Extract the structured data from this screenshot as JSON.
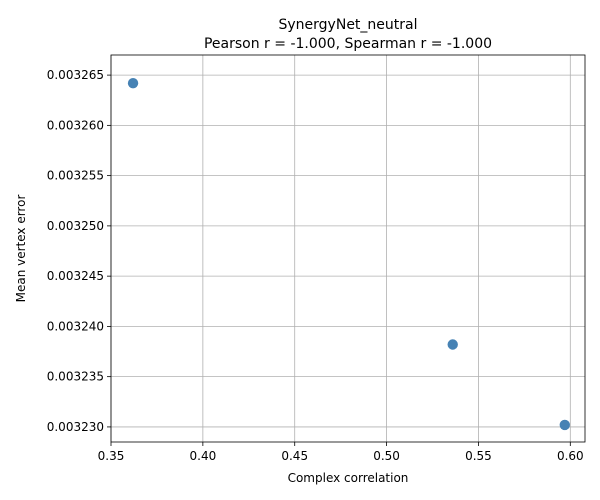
{
  "chart_data": {
    "type": "scatter",
    "title_line1": "SynergyNet_neutral",
    "title_line2": "Pearson r = -1.000, Spearman r = -1.000",
    "xlabel": "Complex correlation",
    "ylabel": "Mean vertex error",
    "xlim": [
      0.35,
      0.608
    ],
    "ylim": [
      0.0032285,
      0.003267
    ],
    "xticks": [
      0.35,
      0.4,
      0.45,
      0.5,
      0.55,
      0.6
    ],
    "xtick_labels": [
      "0.35",
      "0.40",
      "0.45",
      "0.50",
      "0.55",
      "0.60"
    ],
    "yticks": [
      0.00323,
      0.003235,
      0.00324,
      0.003245,
      0.00325,
      0.003255,
      0.00326,
      0.003265
    ],
    "ytick_labels": [
      "0.003230",
      "0.003235",
      "0.003240",
      "0.003245",
      "0.003250",
      "0.003255",
      "0.003260",
      "0.003265"
    ],
    "grid": true,
    "marker_color": "#4682b4",
    "points": [
      {
        "x": 0.362,
        "y": 0.0032642
      },
      {
        "x": 0.536,
        "y": 0.0032382
      },
      {
        "x": 0.597,
        "y": 0.0032302
      }
    ]
  }
}
